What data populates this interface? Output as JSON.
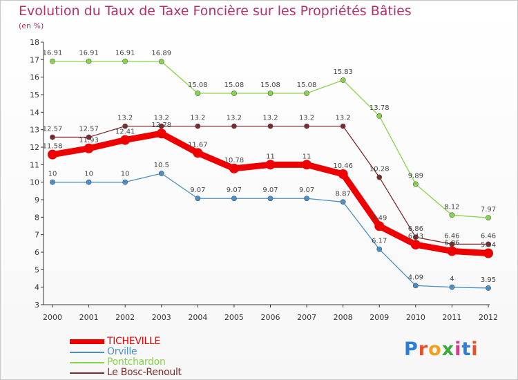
{
  "title": "Evolution du Taux de Taxe Foncière sur les Propriétés Bâties",
  "subtitle": "(en %)",
  "logo_text": "Proxiti",
  "chart_data": {
    "type": "line",
    "title": "Evolution du Taux de Taxe Foncière sur les Propriétés Bâties",
    "subtitle": "(en %)",
    "x": [
      "2000",
      "2001",
      "2002",
      "2003",
      "2004",
      "2005",
      "2006",
      "2007",
      "2008",
      "2009",
      "2010",
      "2011",
      "2012"
    ],
    "ylim": [
      3,
      18
    ],
    "yticks": [
      3,
      4,
      5,
      6,
      7,
      8,
      9,
      10,
      11,
      12,
      13,
      14,
      15,
      16,
      17,
      18
    ],
    "legend": "bottom-left",
    "grid": false,
    "series": [
      {
        "name": "TICHEVILLE",
        "color": "#ee0000",
        "values": [
          11.58,
          11.93,
          12.41,
          12.78,
          11.67,
          10.78,
          11,
          11,
          10.46,
          7.49,
          6.43,
          6.06,
          5.94
        ],
        "labels": [
          "11.58",
          "11.93",
          "12.41",
          "12.78",
          "11.67",
          "10.78",
          "11",
          "11",
          "10.46",
          "7.49",
          "6.43",
          "6.06",
          "5.94"
        ]
      },
      {
        "name": "Orville",
        "color": "#4a90c8",
        "values": [
          10,
          10,
          10,
          10.5,
          9.07,
          9.07,
          9.07,
          9.07,
          8.87,
          6.17,
          4.09,
          4,
          3.95
        ],
        "labels": [
          "10",
          "10",
          "10",
          "10.5",
          "9.07",
          "9.07",
          "9.07",
          "9.07",
          "8.87",
          "6.17",
          "4.09",
          "4",
          "3.95"
        ]
      },
      {
        "name": "Pontchardon",
        "color": "#88d44a",
        "values": [
          16.91,
          16.91,
          16.91,
          16.89,
          15.08,
          15.08,
          15.08,
          15.08,
          15.83,
          13.78,
          9.89,
          8.12,
          7.97
        ],
        "labels": [
          "16.91",
          "16.91",
          "16.91",
          "16.89",
          "15.08",
          "15.08",
          "15.08",
          "15.08",
          "15.83",
          "13.78",
          "9.89",
          "8.12",
          "7.97"
        ]
      },
      {
        "name": "Le Bosc-Renoult",
        "color": "#7a2a2a",
        "values": [
          12.57,
          12.57,
          13.2,
          13.2,
          13.2,
          13.2,
          13.2,
          13.2,
          13.2,
          10.28,
          6.86,
          6.46,
          6.46
        ],
        "labels": [
          "12.57",
          "12.57",
          "13.2",
          "13.2",
          "13.2",
          "13.2",
          "13.2",
          "13.2",
          "13.2",
          "10.28",
          "6.86",
          "6.46",
          "6.46"
        ]
      }
    ]
  }
}
